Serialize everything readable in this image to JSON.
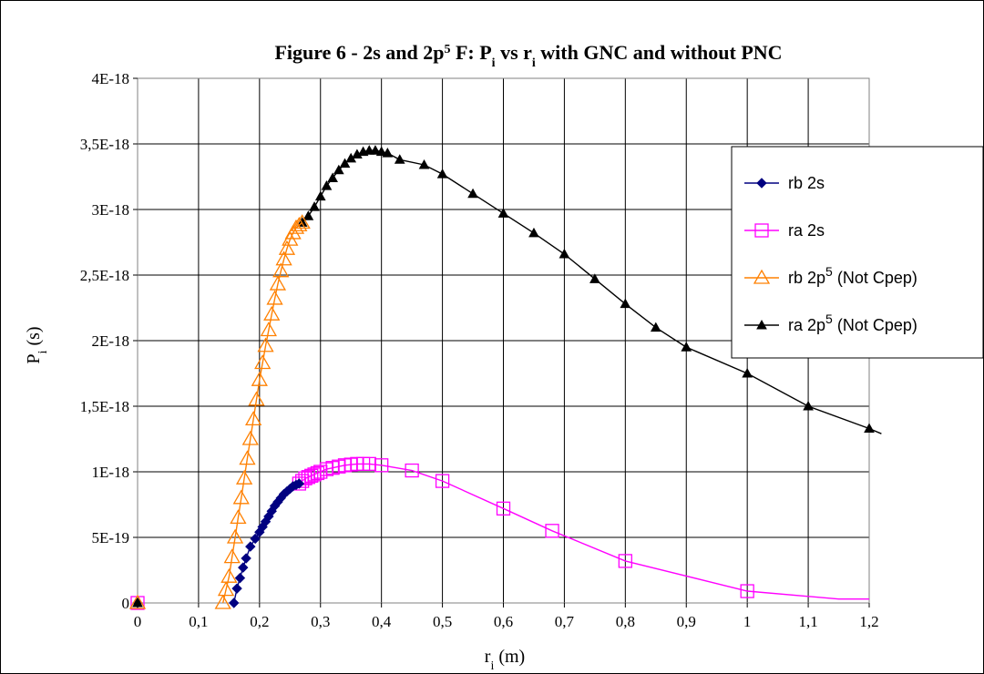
{
  "chart_data": {
    "type": "line",
    "title": {
      "parts": [
        "Figure 6 - 2s and 2p",
        "5",
        " F: P",
        "i",
        " vs r",
        "i",
        " with GNC and without PNC"
      ]
    },
    "xlabel": {
      "main": "r",
      "sub": "i",
      "rest": " (m)"
    },
    "ylabel": {
      "main": "P",
      "sub": "i",
      "rest": " (s)"
    },
    "xlim": [
      0,
      1.2
    ],
    "ylim": [
      0,
      4e-18
    ],
    "x_ticks": [
      0,
      0.1,
      0.2,
      0.3,
      0.4,
      0.5,
      0.6,
      0.7,
      0.8,
      0.9,
      1,
      1.1,
      1.2
    ],
    "x_tick_labels": [
      "0",
      "0,1",
      "0,2",
      "0,3",
      "0,4",
      "0,5",
      "0,6",
      "0,7",
      "0,8",
      "0,9",
      "1",
      "1,1",
      "1,2"
    ],
    "y_ticks": [
      0,
      5e-19,
      1e-18,
      1.5e-18,
      2e-18,
      2.5e-18,
      3e-18,
      3.5e-18,
      4e-18
    ],
    "y_tick_labels": [
      "0",
      "5E-19",
      "1E-18",
      "1,5E-18",
      "2E-18",
      "2,5E-18",
      "3E-18",
      "3,5E-18",
      "4E-18"
    ],
    "grid": true,
    "legend_position": "right",
    "series": [
      {
        "name": "rb 2s",
        "color": "#000080",
        "marker": "diamond",
        "x": [
          0,
          0.158,
          0.163,
          0.168,
          0.173,
          0.178,
          0.185,
          0.193,
          0.2,
          0.205,
          0.21,
          0.215,
          0.22,
          0.225,
          0.23,
          0.235,
          0.24,
          0.245,
          0.25,
          0.255,
          0.26,
          0.265
        ],
        "y": [
          0,
          0,
          1.1e-19,
          1.9e-19,
          2.7e-19,
          3.4e-19,
          4.3e-19,
          4.9e-19,
          5.4e-19,
          5.8e-19,
          6.2e-19,
          6.6e-19,
          7e-19,
          7.4e-19,
          7.7e-19,
          8e-19,
          8.3e-19,
          8.5e-19,
          8.7e-19,
          8.9e-19,
          9e-19,
          9.1e-19
        ]
      },
      {
        "name": "ra 2s",
        "color": "#ff00ff",
        "marker": "square",
        "x": [
          0,
          0.265,
          0.27,
          0.275,
          0.28,
          0.285,
          0.29,
          0.295,
          0.3,
          0.31,
          0.32,
          0.33,
          0.34,
          0.35,
          0.36,
          0.37,
          0.38,
          0.4,
          0.45,
          0.5,
          0.6,
          0.68,
          0.8,
          1.0,
          1.15,
          1.2
        ],
        "y": [
          0,
          9.1e-19,
          9.3e-19,
          9.5e-19,
          9.6e-19,
          9.7e-19,
          9.8e-19,
          9.9e-19,
          1e-18,
          1.02e-18,
          1.03e-18,
          1.04e-18,
          1.05e-18,
          1.055e-18,
          1.06e-18,
          1.06e-18,
          1.06e-18,
          1.05e-18,
          1.01e-18,
          9.3e-19,
          7.2e-19,
          5.5e-19,
          3.2e-19,
          9e-20,
          3e-20,
          3e-20
        ],
        "marker_indices": [
          0,
          1,
          2,
          3,
          4,
          5,
          6,
          7,
          8,
          9,
          10,
          11,
          12,
          13,
          14,
          15,
          16,
          17,
          18,
          19,
          20,
          21,
          22,
          23
        ]
      },
      {
        "name": "rb 2p5 (Not Cpep)",
        "name_parts": [
          "rb 2p",
          "5",
          " (Not Cpep)"
        ],
        "color": "#ff8000",
        "marker": "triangle-open",
        "x": [
          0,
          0.14,
          0.145,
          0.15,
          0.155,
          0.16,
          0.165,
          0.17,
          0.175,
          0.18,
          0.185,
          0.19,
          0.195,
          0.2,
          0.205,
          0.21,
          0.215,
          0.22,
          0.225,
          0.23,
          0.235,
          0.24,
          0.245,
          0.25,
          0.255,
          0.26,
          0.265,
          0.27
        ],
        "y": [
          0,
          0,
          1e-19,
          2e-19,
          3.5e-19,
          5e-19,
          6.5e-19,
          8e-19,
          9.5e-19,
          1.1e-18,
          1.25e-18,
          1.4e-18,
          1.55e-18,
          1.7e-18,
          1.83e-18,
          1.96e-18,
          2.08e-18,
          2.2e-18,
          2.32e-18,
          2.43e-18,
          2.53e-18,
          2.62e-18,
          2.7e-18,
          2.77e-18,
          2.82e-18,
          2.86e-18,
          2.88e-18,
          2.9e-18
        ]
      },
      {
        "name": "ra 2p5 (Not Cpep)",
        "name_parts": [
          "ra 2p",
          "5",
          " (Not Cpep)"
        ],
        "color": "#000000",
        "marker": "triangle-filled",
        "x": [
          0,
          0.27,
          0.28,
          0.29,
          0.3,
          0.31,
          0.32,
          0.33,
          0.34,
          0.35,
          0.36,
          0.37,
          0.38,
          0.39,
          0.4,
          0.41,
          0.43,
          0.47,
          0.5,
          0.55,
          0.6,
          0.65,
          0.7,
          0.75,
          0.8,
          0.85,
          0.9,
          1.0,
          1.1,
          1.2
        ],
        "y": [
          0,
          2.9e-18,
          2.95e-18,
          3.02e-18,
          3.1e-18,
          3.18e-18,
          3.24e-18,
          3.3e-18,
          3.35e-18,
          3.39e-18,
          3.42e-18,
          3.44e-18,
          3.45e-18,
          3.45e-18,
          3.44e-18,
          3.43e-18,
          3.38e-18,
          3.34e-18,
          3.27e-18,
          3.12e-18,
          2.97e-18,
          2.82e-18,
          2.66e-18,
          2.47e-18,
          2.28e-18,
          2.1e-18,
          1.95e-18,
          1.75e-18,
          1.5e-18,
          1.33e-18
        ],
        "line_x": [
          0.27,
          0.28,
          0.29,
          0.3,
          0.31,
          0.32,
          0.33,
          0.34,
          0.35,
          0.36,
          0.37,
          0.38,
          0.39,
          0.4,
          0.41,
          0.43,
          0.47,
          0.5,
          0.55,
          0.6,
          0.65,
          0.7,
          0.75,
          0.8,
          0.85,
          0.9,
          1.0,
          1.1,
          1.2,
          1.22
        ],
        "line_y": [
          2.9e-18,
          2.95e-18,
          3.02e-18,
          3.1e-18,
          3.18e-18,
          3.24e-18,
          3.3e-18,
          3.35e-18,
          3.39e-18,
          3.42e-18,
          3.44e-18,
          3.45e-18,
          3.45e-18,
          3.44e-18,
          3.43e-18,
          3.38e-18,
          3.34e-18,
          3.27e-18,
          3.12e-18,
          2.97e-18,
          2.82e-18,
          2.66e-18,
          2.47e-18,
          2.28e-18,
          2.1e-18,
          1.95e-18,
          1.75e-18,
          1.5e-18,
          1.33e-18,
          1.29e-18
        ]
      }
    ]
  }
}
